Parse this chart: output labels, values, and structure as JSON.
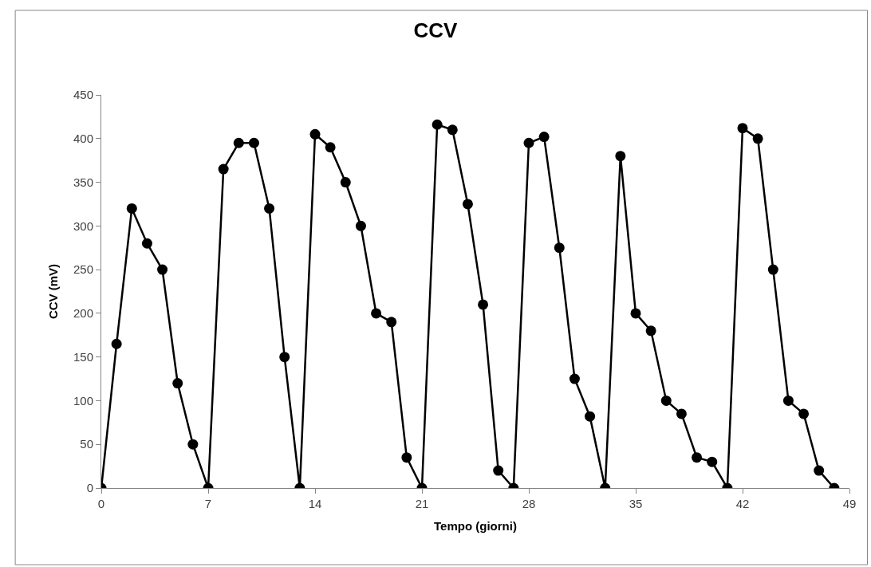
{
  "chart_data": {
    "type": "line",
    "title": "CCV",
    "xlabel": "Tempo (giorni)",
    "ylabel": "CCV (mV)",
    "x": [
      0,
      1,
      2,
      3,
      4,
      5,
      6,
      7,
      8,
      9,
      10,
      11,
      12,
      13,
      14,
      15,
      16,
      17,
      18,
      19,
      20,
      21,
      22,
      23,
      24,
      25,
      26,
      27,
      28,
      29,
      30,
      31,
      32,
      33,
      34,
      35,
      36,
      37,
      38,
      39,
      40,
      41,
      42,
      43,
      44,
      45,
      46,
      47,
      48
    ],
    "series": [
      {
        "color": "#000000",
        "values": [
          0,
          165,
          320,
          280,
          250,
          120,
          50,
          0,
          365,
          395,
          395,
          320,
          150,
          0,
          405,
          390,
          350,
          300,
          200,
          190,
          35,
          0,
          416,
          410,
          325,
          210,
          20,
          0,
          395,
          402,
          275,
          125,
          82,
          0,
          380,
          200,
          180,
          100,
          85,
          35,
          30,
          0,
          412,
          400,
          250,
          100,
          85,
          20,
          0
        ]
      }
    ],
    "xlim": [
      0,
      49
    ],
    "xticks": [
      0,
      7,
      14,
      21,
      28,
      35,
      42,
      49
    ],
    "ylim": [
      0,
      450
    ],
    "yticks": [
      0,
      50,
      100,
      150,
      200,
      250,
      300,
      350,
      400,
      450
    ],
    "legend": false,
    "marker": "circle",
    "line_style": "solid"
  }
}
